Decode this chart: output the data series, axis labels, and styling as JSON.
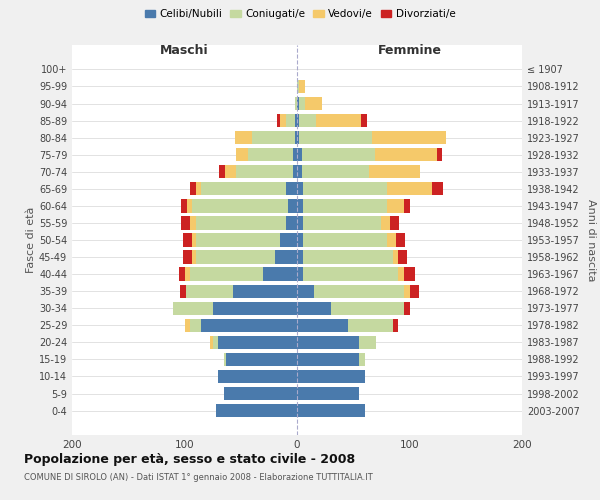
{
  "age_groups": [
    "0-4",
    "5-9",
    "10-14",
    "15-19",
    "20-24",
    "25-29",
    "30-34",
    "35-39",
    "40-44",
    "45-49",
    "50-54",
    "55-59",
    "60-64",
    "65-69",
    "70-74",
    "75-79",
    "80-84",
    "85-89",
    "90-94",
    "95-99",
    "100+"
  ],
  "birth_years": [
    "2003-2007",
    "1998-2002",
    "1993-1997",
    "1988-1992",
    "1983-1987",
    "1978-1982",
    "1973-1977",
    "1968-1972",
    "1963-1967",
    "1958-1962",
    "1953-1957",
    "1948-1952",
    "1943-1947",
    "1938-1942",
    "1933-1937",
    "1928-1932",
    "1923-1927",
    "1918-1922",
    "1913-1917",
    "1908-1912",
    "≤ 1907"
  ],
  "colors": {
    "celibe": "#4a7aac",
    "coniugato": "#c5d9a0",
    "vedovo": "#f5c96a",
    "divorziato": "#cc2222"
  },
  "male": {
    "celibe": [
      72,
      65,
      70,
      63,
      70,
      85,
      75,
      57,
      30,
      20,
      15,
      10,
      8,
      10,
      4,
      4,
      2,
      2,
      0,
      0,
      0
    ],
    "coniugato": [
      0,
      0,
      0,
      2,
      5,
      10,
      35,
      42,
      65,
      70,
      75,
      80,
      85,
      75,
      50,
      40,
      38,
      8,
      2,
      0,
      0
    ],
    "vedovo": [
      0,
      0,
      0,
      0,
      2,
      5,
      0,
      0,
      5,
      3,
      3,
      5,
      5,
      5,
      10,
      10,
      15,
      5,
      0,
      0,
      0
    ],
    "divorziato": [
      0,
      0,
      0,
      0,
      0,
      0,
      0,
      5,
      5,
      8,
      8,
      8,
      5,
      5,
      5,
      0,
      0,
      3,
      0,
      0,
      0
    ]
  },
  "female": {
    "nubile": [
      60,
      55,
      60,
      55,
      55,
      45,
      30,
      15,
      5,
      5,
      5,
      5,
      5,
      5,
      4,
      4,
      2,
      2,
      2,
      0,
      0
    ],
    "coniugata": [
      0,
      0,
      0,
      5,
      15,
      40,
      65,
      80,
      85,
      80,
      75,
      70,
      75,
      75,
      60,
      65,
      65,
      15,
      5,
      2,
      0
    ],
    "vedova": [
      0,
      0,
      0,
      0,
      0,
      0,
      0,
      5,
      5,
      5,
      8,
      8,
      15,
      40,
      45,
      55,
      65,
      40,
      15,
      5,
      0
    ],
    "divorziata": [
      0,
      0,
      0,
      0,
      0,
      5,
      5,
      8,
      10,
      8,
      8,
      8,
      5,
      10,
      0,
      5,
      0,
      5,
      0,
      0,
      0
    ]
  },
  "title": "Popolazione per età, sesso e stato civile - 2008",
  "subtitle": "COMUNE DI SIROLO (AN) - Dati ISTAT 1° gennaio 2008 - Elaborazione TUTTITALIA.IT",
  "xlabel_left": "Maschi",
  "xlabel_right": "Femmine",
  "ylabel_left": "Fasce di età",
  "ylabel_right": "Anni di nascita",
  "xlim": 200,
  "bg_color": "#f0f0f0",
  "plot_bg": "#ffffff",
  "legend_labels": [
    "Celibi/Nubili",
    "Coniugati/e",
    "Vedovi/e",
    "Divorziati/e"
  ]
}
